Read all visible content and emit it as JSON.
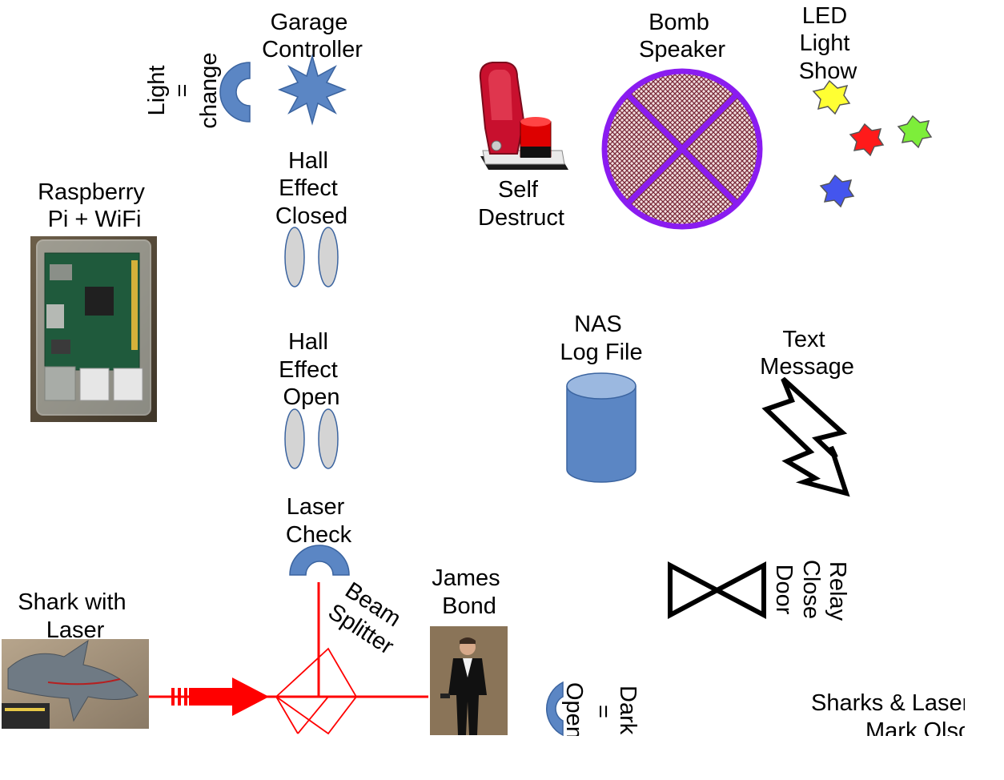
{
  "labels": {
    "garage_controller": [
      "Garage",
      "Controller"
    ],
    "light_change": [
      "Light",
      "=",
      "change"
    ],
    "bomb_speaker": [
      "Bomb",
      "Speaker"
    ],
    "led_light_show": [
      "LED",
      "Light",
      "Show"
    ],
    "self_destruct": [
      "Self",
      "Destruct"
    ],
    "raspberry_pi": [
      "Raspberry",
      "Pi + WiFi"
    ],
    "hall_effect_closed": [
      "Hall",
      "Effect",
      "Closed"
    ],
    "hall_effect_open": [
      "Hall",
      "Effect",
      "Open"
    ],
    "nas_log_file": [
      "NAS",
      "Log File"
    ],
    "text_message": [
      "Text",
      "Message"
    ],
    "laser_check": [
      "Laser",
      "Check"
    ],
    "beam_splitter": [
      "Beam",
      "Splitter"
    ],
    "james_bond": [
      "James",
      "Bond"
    ],
    "shark_with_laser": [
      "Shark with",
      "Laser"
    ],
    "relay_close_door": [
      "Relay",
      "Close",
      "Door"
    ],
    "dark_open": [
      "Dark",
      "=",
      "Open"
    ],
    "credit": [
      "Sharks & Lasers",
      "Mark Olson"
    ]
  },
  "colors": {
    "component_blue": "#5b86c4",
    "laser_red": "#ff0000",
    "led_yellow": "#ffff33",
    "led_red": "#ff1a1a",
    "led_green": "#7dee3a",
    "led_blue": "#4455ee",
    "bomb_outline": "#8a1cf0",
    "bomb_fill": "#7a2a3a",
    "hall_sensor_gray": "#d4d4d4"
  }
}
